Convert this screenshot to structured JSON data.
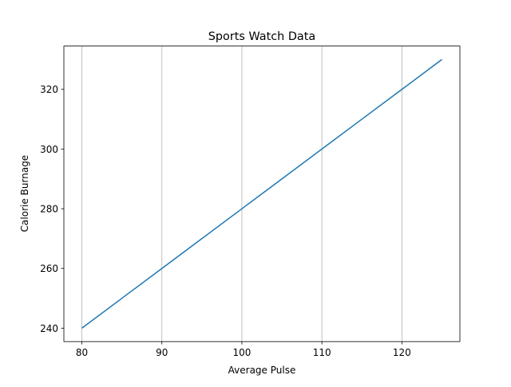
{
  "chart_data": {
    "type": "line",
    "title": "Sports Watch Data",
    "xlabel": "Average Pulse",
    "ylabel": "Calorie Burnage",
    "x": [
      80,
      85,
      90,
      95,
      100,
      105,
      110,
      115,
      120,
      125
    ],
    "series": [
      {
        "values": [
          240,
          250,
          260,
          270,
          280,
          290,
          300,
          310,
          320,
          330
        ],
        "color": "#1f77b4"
      }
    ],
    "xlim": [
      77.75,
      127.25
    ],
    "ylim": [
      235.5,
      334.5
    ],
    "xticks": [
      80,
      90,
      100,
      110,
      120
    ],
    "yticks": [
      240,
      260,
      280,
      300,
      320
    ],
    "xtick_labels": [
      "80",
      "90",
      "100",
      "110",
      "120"
    ],
    "ytick_labels": [
      "240",
      "260",
      "280",
      "300",
      "320"
    ],
    "grid": "x-axis only",
    "grid_color": "#b0b0b0"
  }
}
